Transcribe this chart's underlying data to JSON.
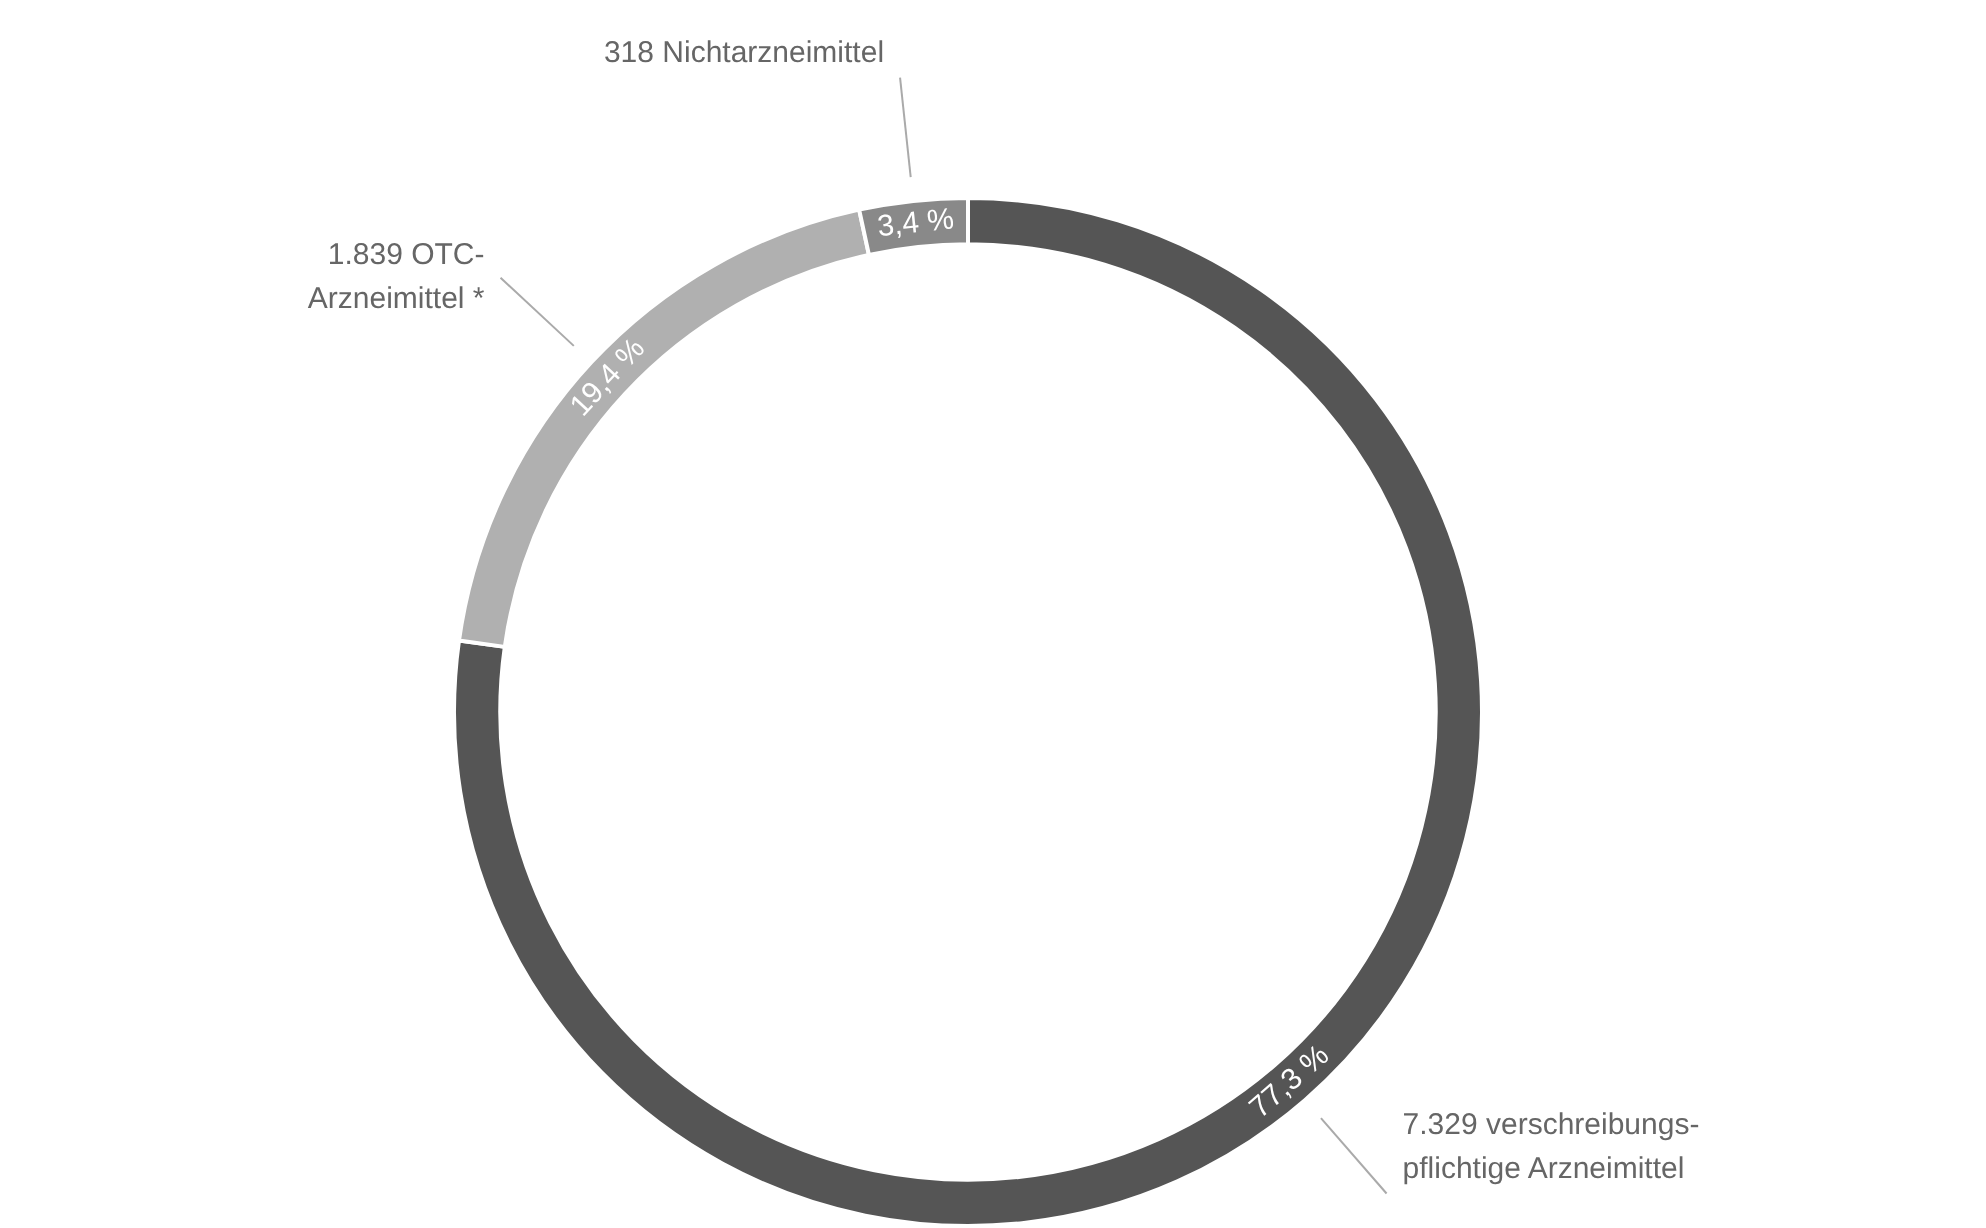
{
  "chart_data": {
    "type": "donut",
    "categories": [
      "7.329 verschreibungs-\npflichtige Arzneimittel",
      "1.839 OTC-\nArzneimittel *",
      "318 Nichtarzneimittel"
    ],
    "values": [
      77.3,
      19.4,
      3.4
    ],
    "value_labels": [
      "77,3 %",
      "19,4 %",
      "3,4 %"
    ],
    "colors": [
      "#555555",
      "#b0b0b0",
      "#898989"
    ],
    "legend": false
  }
}
